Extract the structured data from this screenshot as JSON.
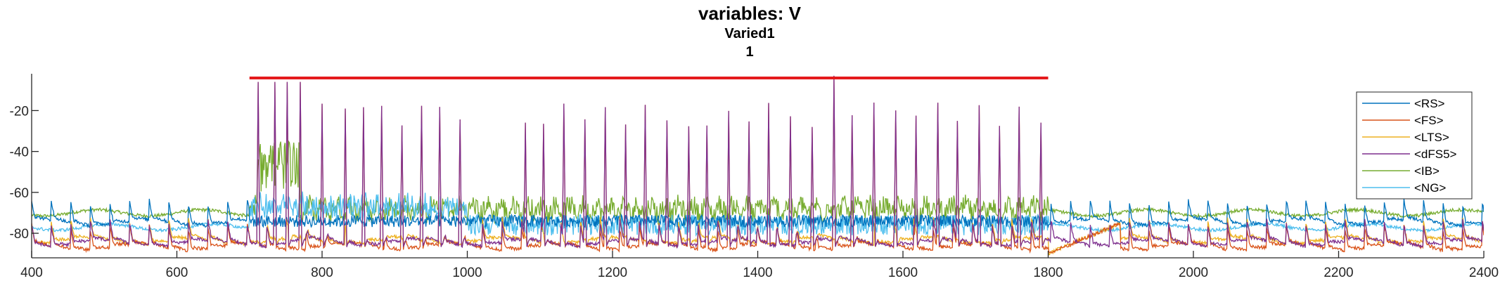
{
  "chart_data": {
    "type": "line",
    "title": "variables: V",
    "subtitle": "Varied1",
    "subtitle2": "1",
    "xlabel": "",
    "ylabel": "",
    "xlim": [
      400,
      2400
    ],
    "ylim": [
      -92,
      -2
    ],
    "xticks": [
      400,
      600,
      800,
      1000,
      1200,
      1400,
      1600,
      1800,
      2000,
      2200,
      2400
    ],
    "yticks": [
      -80,
      -60,
      -40,
      -20
    ],
    "grid": false,
    "legend_position": "right",
    "stimulus_bar": {
      "x": [
        700,
        1800
      ],
      "y": -2,
      "color": "#e41a1c"
    },
    "spike_peak_times": [
      712,
      735,
      752,
      770,
      800,
      832,
      857,
      882,
      910,
      937,
      962,
      990,
      1080,
      1105,
      1133,
      1162,
      1190,
      1218,
      1245,
      1275,
      1305,
      1330,
      1360,
      1388,
      1415,
      1445,
      1475,
      1505,
      1530,
      1560,
      1590,
      1618,
      1648,
      1675,
      1705,
      1733,
      1760,
      1790
    ],
    "series": [
      {
        "name": "<RS>",
        "color": "#0072BD",
        "baseline": -73,
        "mode": "rs"
      },
      {
        "name": "<FS>",
        "color": "#D95319",
        "baseline": -85,
        "mode": "fs"
      },
      {
        "name": "<LTS>",
        "color": "#EDB120",
        "baseline": -82,
        "mode": "lts"
      },
      {
        "name": "<dFS5>",
        "color": "#7E2F8E",
        "baseline": -83,
        "mode": "dfs"
      },
      {
        "name": "<IB>",
        "color": "#77AC30",
        "baseline": -70,
        "mode": "ib"
      },
      {
        "name": "<NG>",
        "color": "#4DBEEE",
        "baseline": -77,
        "mode": "ng"
      }
    ]
  }
}
